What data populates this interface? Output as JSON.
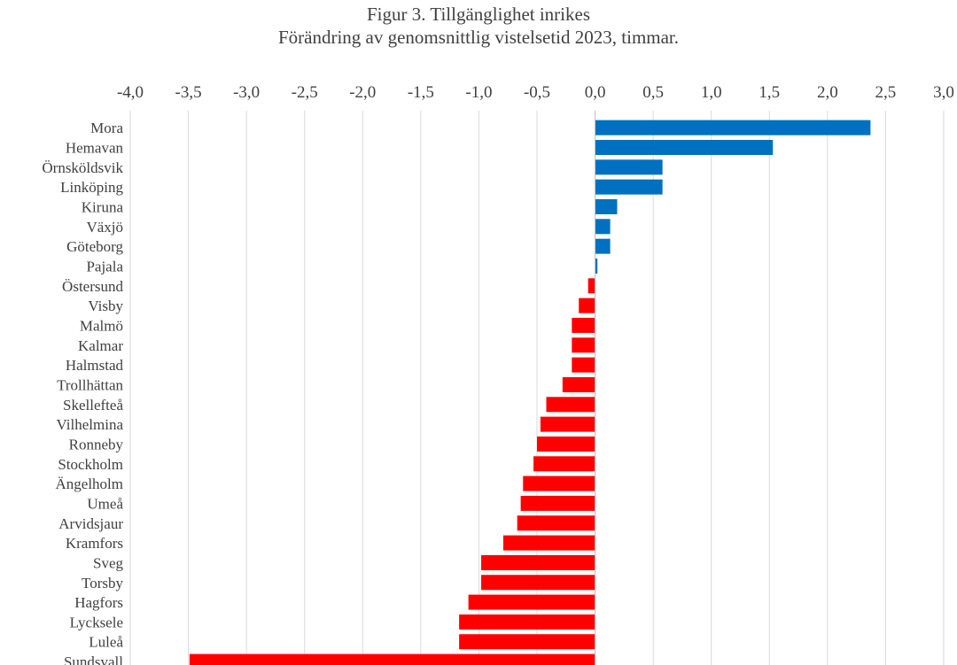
{
  "chart_data": {
    "type": "bar",
    "orientation": "horizontal",
    "title": "Figur 3. Tillgänglighet inrikes",
    "subtitle": "Förändring av genomsnittlig vistelsetid 2023, timmar.",
    "xlabel": "",
    "ylabel": "",
    "xlim": [
      -4.0,
      3.0
    ],
    "x_ticks": [
      "-4,0",
      "-3,5",
      "-3,0",
      "-2,5",
      "-2,0",
      "-1,5",
      "-1,0",
      "-0,5",
      "0,0",
      "0,5",
      "1,0",
      "1,5",
      "2,0",
      "2,5",
      "3,0"
    ],
    "x_axis_position": "top",
    "grid": true,
    "legend": "none",
    "positive_color": "#0070C0",
    "negative_color": "#FF0000",
    "categories": [
      "Mora",
      "Hemavan",
      "Örnsköldsvik",
      "Linköping",
      "Kiruna",
      "Växjö",
      "Göteborg",
      "Pajala",
      "Östersund",
      "Visby",
      "Malmö",
      "Kalmar",
      "Halmstad",
      "Trollhättan",
      "Skellefteå",
      "Vilhelmina",
      "Ronneby",
      "Stockholm",
      "Ängelholm",
      "Umeå",
      "Arvidsjaur",
      "Kramfors",
      "Sveg",
      "Torsby",
      "Hagfors",
      "Lycksele",
      "Luleå",
      "Sundsvall"
    ],
    "values": [
      2.37,
      1.53,
      0.58,
      0.58,
      0.19,
      0.13,
      0.13,
      0.02,
      -0.06,
      -0.14,
      -0.2,
      -0.2,
      -0.2,
      -0.28,
      -0.42,
      -0.47,
      -0.5,
      -0.53,
      -0.62,
      -0.64,
      -0.67,
      -0.79,
      -0.98,
      -0.98,
      -1.09,
      -1.17,
      -1.17,
      -3.49
    ]
  }
}
